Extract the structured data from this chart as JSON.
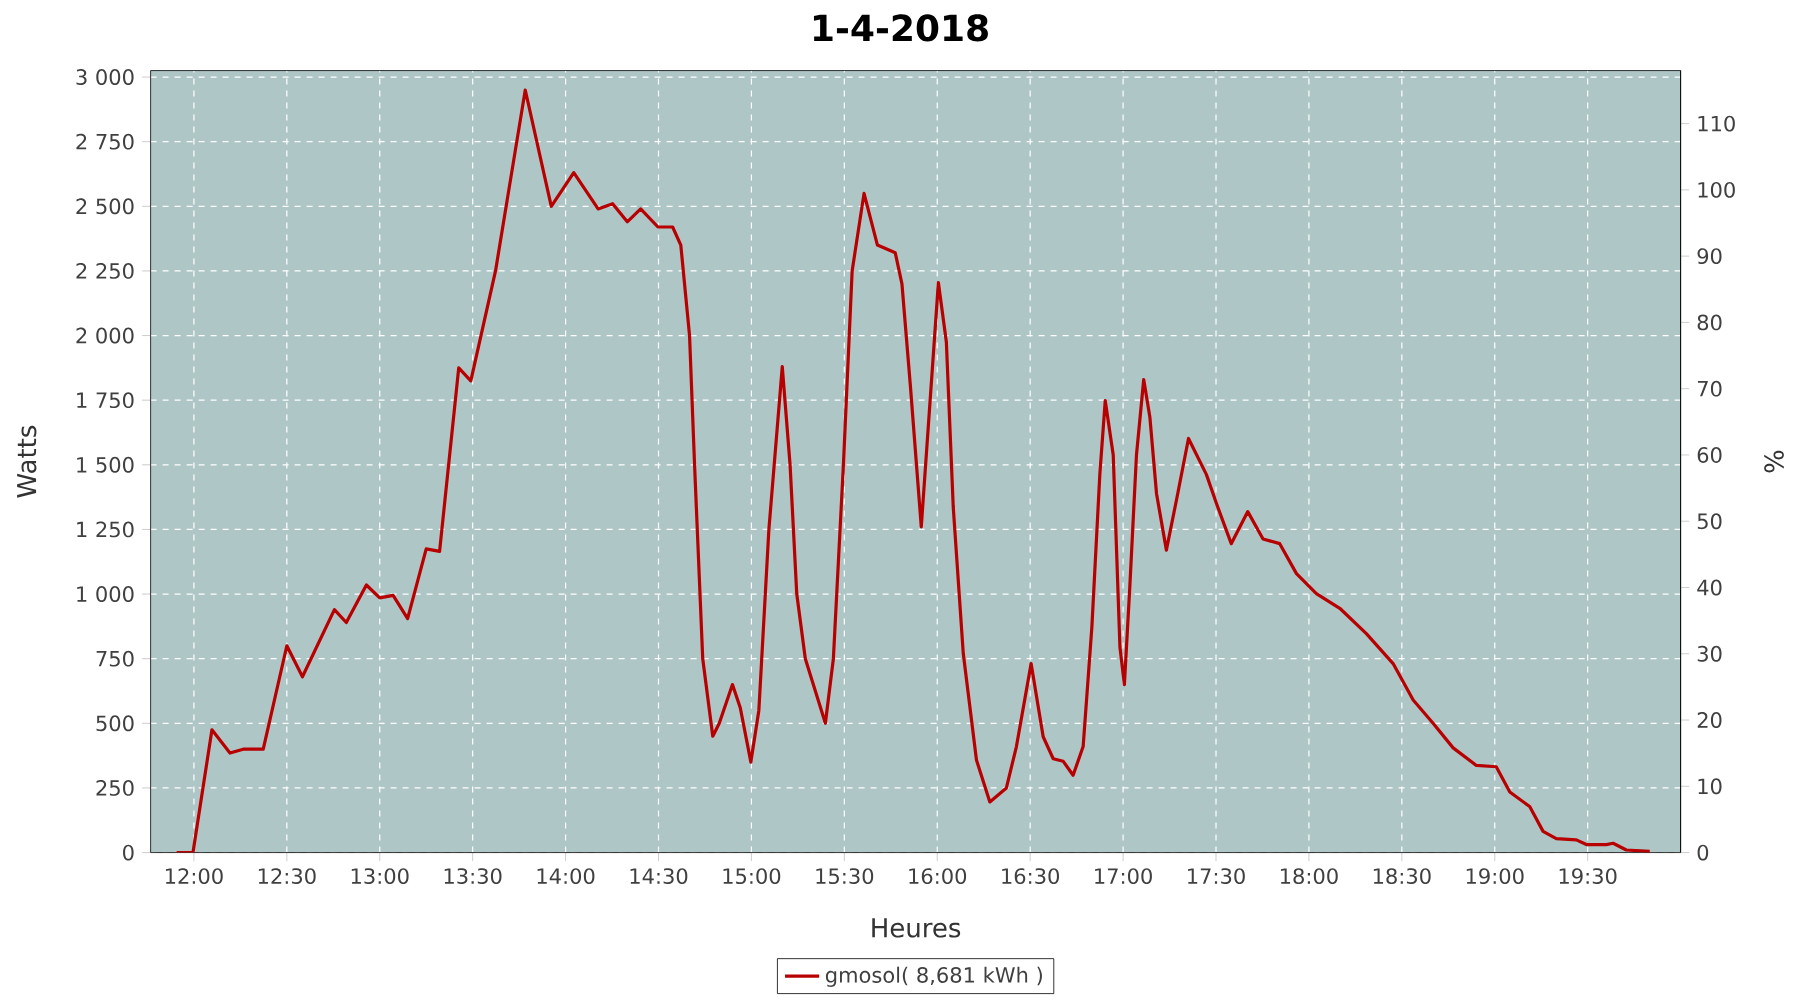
{
  "chart_data": {
    "type": "line",
    "title": "1-4-2018",
    "xlabel": "Heures",
    "ylabel": "Watts",
    "y2label": "%",
    "x": [
      11.907,
      11.995,
      12.097,
      12.194,
      12.265,
      12.373,
      12.5,
      12.584,
      12.756,
      12.82,
      12.928,
      13.0,
      13.072,
      13.15,
      13.25,
      13.322,
      13.425,
      13.49,
      13.623,
      13.783,
      13.923,
      14.044,
      14.175,
      14.253,
      14.332,
      14.404,
      14.497,
      14.576,
      14.62,
      14.667,
      14.694,
      14.738,
      14.792,
      14.827,
      14.898,
      14.94,
      14.997,
      15.04,
      15.094,
      15.166,
      15.208,
      15.244,
      15.29,
      15.398,
      15.441,
      15.495,
      15.542,
      15.606,
      15.678,
      15.774,
      15.81,
      15.856,
      15.914,
      16.006,
      16.049,
      16.086,
      16.14,
      16.211,
      16.283,
      16.372,
      16.426,
      16.505,
      16.57,
      16.624,
      16.678,
      16.731,
      16.785,
      16.832,
      16.875,
      16.904,
      16.947,
      16.983,
      17.007,
      17.036,
      17.072,
      17.111,
      17.144,
      17.18,
      17.233,
      17.287,
      17.352,
      17.448,
      17.502,
      17.582,
      17.671,
      17.753,
      17.843,
      17.933,
      18.04,
      18.166,
      18.309,
      18.453,
      18.561,
      18.668,
      18.776,
      18.901,
      19.008,
      19.081,
      19.188,
      19.26,
      19.331,
      19.439,
      19.493,
      19.6,
      19.637,
      19.708,
      19.834
    ],
    "series": [
      {
        "name": "gmosol( 8,681 kWh )",
        "color": "#b80000",
        "values": [
          0,
          0,
          475,
          385,
          400,
          400,
          800,
          680,
          940,
          890,
          1035,
          985,
          995,
          905,
          1175,
          1165,
          1875,
          1825,
          2250,
          2950,
          2500,
          2630,
          2490,
          2510,
          2440,
          2490,
          2420,
          2420,
          2350,
          2000,
          1500,
          750,
          450,
          500,
          650,
          560,
          350,
          550,
          1250,
          1880,
          1500,
          1000,
          750,
          500,
          750,
          1500,
          2250,
          2550,
          2350,
          2320,
          2200,
          1800,
          1260,
          2205,
          1975,
          1337,
          770,
          358,
          196,
          250,
          410,
          731,
          448,
          363,
          353,
          299,
          410,
          872,
          1465,
          1748,
          1538,
          795,
          650,
          1026,
          1538,
          1830,
          1685,
          1388,
          1170,
          1363,
          1602,
          1463,
          1351,
          1195,
          1319,
          1213,
          1195,
          1079,
          1002,
          945,
          847,
          731,
          590,
          500,
          405,
          337,
          332,
          234,
          178,
          82,
          54,
          49,
          31,
          31,
          36,
          10,
          5
        ]
      }
    ],
    "xlim": [
      11.767,
      20.0
    ],
    "ylim": [
      0,
      3025
    ],
    "y2lim": [
      0,
      118
    ],
    "xticks": [
      {
        "value": 12,
        "label": "12:00"
      },
      {
        "value": 12.5,
        "label": "12:30"
      },
      {
        "value": 13,
        "label": "13:00"
      },
      {
        "value": 13.5,
        "label": "13:30"
      },
      {
        "value": 14,
        "label": "14:00"
      },
      {
        "value": 14.5,
        "label": "14:30"
      },
      {
        "value": 15,
        "label": "15:00"
      },
      {
        "value": 15.5,
        "label": "15:30"
      },
      {
        "value": 16,
        "label": "16:00"
      },
      {
        "value": 16.5,
        "label": "16:30"
      },
      {
        "value": 17,
        "label": "17:00"
      },
      {
        "value": 17.5,
        "label": "17:30"
      },
      {
        "value": 18,
        "label": "18:00"
      },
      {
        "value": 18.5,
        "label": "18:30"
      },
      {
        "value": 19,
        "label": "19:00"
      },
      {
        "value": 19.5,
        "label": "19:30"
      }
    ],
    "yticks": [
      0,
      250,
      500,
      750,
      {
        "value": 1000,
        "label": "1 000"
      },
      {
        "value": 1250,
        "label": "1 250"
      },
      {
        "value": 1500,
        "label": "1 500"
      },
      {
        "value": 1750,
        "label": "1 750"
      },
      {
        "value": 2000,
        "label": "2 000"
      },
      {
        "value": 2250,
        "label": "2 250"
      },
      {
        "value": 2500,
        "label": "2 500"
      },
      {
        "value": 2750,
        "label": "2 750"
      },
      {
        "value": 3000,
        "label": "3 000"
      }
    ],
    "y2ticks": [
      0,
      10,
      20,
      30,
      40,
      50,
      60,
      70,
      80,
      90,
      100,
      110
    ],
    "grid": true,
    "legend": "bottom",
    "marker": "none",
    "line_style": "solid"
  }
}
